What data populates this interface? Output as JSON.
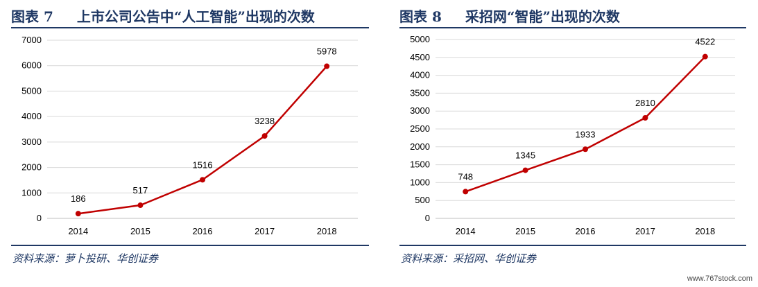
{
  "charts": [
    {
      "fig_label": "图表 7",
      "title": "上市公司公告中“人工智能”出现的次数",
      "source": "资料来源：萝卜投研、华创证券"
    },
    {
      "fig_label": "图表 8",
      "title": "采招网“智能”出现的次数",
      "source": "资料来源：采招网、华创证券"
    }
  ],
  "chart_data": [
    {
      "type": "line",
      "title": "上市公司公告中“人工智能”出现的次数",
      "x": [
        "2014",
        "2015",
        "2016",
        "2017",
        "2018"
      ],
      "values": [
        186,
        517,
        1516,
        3238,
        5978
      ],
      "ylim": [
        0,
        7000
      ],
      "yticks": [
        0,
        1000,
        2000,
        3000,
        4000,
        5000,
        6000,
        7000
      ],
      "grid": true,
      "color": "#c00000"
    },
    {
      "type": "line",
      "title": "采招网“智能”出现的次数",
      "x": [
        "2014",
        "2015",
        "2016",
        "2017",
        "2018"
      ],
      "values": [
        748,
        1345,
        1933,
        2810,
        4522
      ],
      "ylim": [
        0,
        5000
      ],
      "yticks": [
        0,
        500,
        1000,
        1500,
        2000,
        2500,
        3000,
        3500,
        4000,
        4500,
        5000
      ],
      "grid": true,
      "color": "#c00000"
    }
  ],
  "watermark": "www.767stock.com"
}
